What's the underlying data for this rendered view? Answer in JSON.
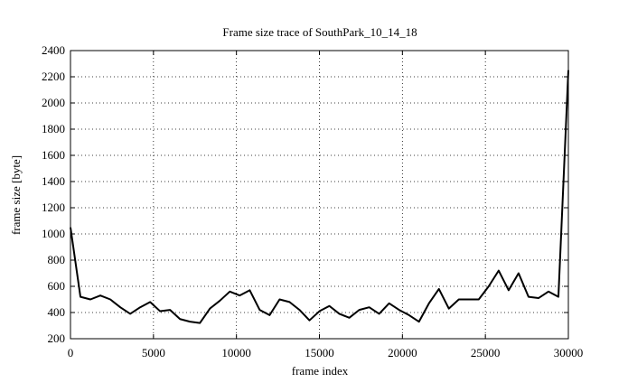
{
  "chart_data": {
    "type": "line",
    "title": "Frame size trace of SouthPark_10_14_18",
    "xlabel": "frame index",
    "ylabel": "frame size [byte]",
    "x": [
      0,
      600,
      1200,
      1800,
      2400,
      3000,
      3600,
      4200,
      4800,
      5400,
      6000,
      6600,
      7200,
      7800,
      8400,
      9000,
      9600,
      10200,
      10800,
      11400,
      12000,
      12600,
      13200,
      13800,
      14400,
      15000,
      15600,
      16200,
      16800,
      17400,
      18000,
      18600,
      19200,
      19800,
      20400,
      21000,
      21600,
      22200,
      22800,
      23400,
      24000,
      24600,
      25200,
      25800,
      26400,
      27000,
      27600,
      28200,
      28800,
      29400,
      30000
    ],
    "series": [
      {
        "color": "#000000",
        "values": [
          1050,
          520,
          500,
          530,
          500,
          440,
          390,
          440,
          480,
          410,
          420,
          350,
          330,
          320,
          430,
          490,
          560,
          530,
          570,
          420,
          380,
          500,
          480,
          420,
          340,
          410,
          450,
          390,
          360,
          420,
          440,
          390,
          470,
          420,
          380,
          330,
          470,
          580,
          430,
          500,
          500,
          500,
          600,
          720,
          570,
          700,
          520,
          510,
          560,
          520,
          2250
        ]
      }
    ],
    "xlim": [
      0,
      30000
    ],
    "xticks": [
      0,
      5000,
      10000,
      15000,
      20000,
      25000,
      30000
    ],
    "ylim": [
      200,
      2400
    ],
    "yticks": [
      200,
      400,
      600,
      800,
      1000,
      1200,
      1400,
      1600,
      1800,
      2000,
      2200,
      2400
    ],
    "grid": true
  }
}
